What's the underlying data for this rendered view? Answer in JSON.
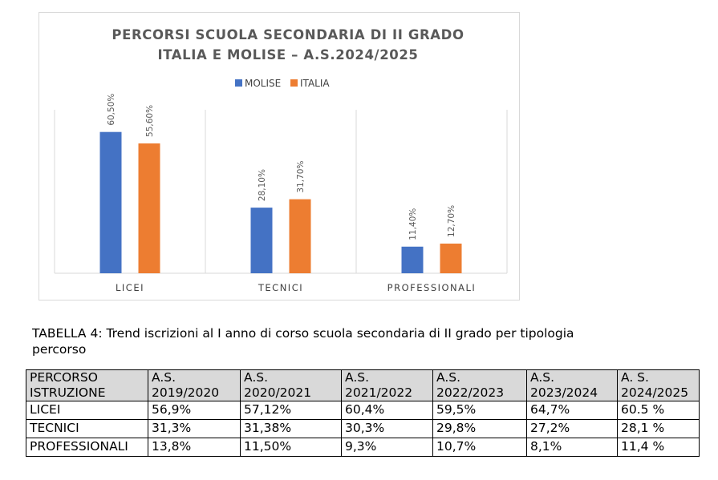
{
  "chart_data": {
    "type": "bar",
    "title_line1": "PERCORSI SCUOLA SECONDARIA DI II GRADO",
    "title_line2": "ITALIA E MOLISE – A.S.2024/2025",
    "categories": [
      "LICEI",
      "TECNICI",
      "PROFESSIONALI"
    ],
    "series": [
      {
        "name": "MOLISE",
        "values": [
          60.5,
          28.1,
          11.4
        ],
        "labels": [
          "60,50%",
          "28,10%",
          "11,40%"
        ],
        "color": "#4472C4"
      },
      {
        "name": "ITALIA",
        "values": [
          55.6,
          31.7,
          12.7
        ],
        "labels": [
          "55,60%",
          "31,70%",
          "12,70%"
        ],
        "color": "#ED7D31"
      }
    ],
    "ylim": [
      0,
      70
    ],
    "legend": "top",
    "grid": false
  },
  "caption": {
    "line1": "TABELLA 4: Trend iscrizioni al I anno di corso scuola secondaria di II grado per tipologia",
    "line2": "percorso"
  },
  "table": {
    "headers": [
      [
        "PERCORSO",
        "ISTRUZIONE"
      ],
      [
        "A.S.",
        "2019/2020"
      ],
      [
        "A.S.",
        "2020/2021"
      ],
      [
        "A.S.",
        "2021/2022"
      ],
      [
        "A.S.",
        "2022/2023"
      ],
      [
        "A.S.",
        "2023/2024"
      ],
      [
        "A. S.",
        "2024/2025"
      ]
    ],
    "rows": [
      [
        "LICEI",
        "56,9%",
        "57,12%",
        "60,4%",
        "59,5%",
        "64,7%",
        "60.5 %"
      ],
      [
        "TECNICI",
        "31,3%",
        "31,38%",
        "30,3%",
        "29,8%",
        "27,2%",
        "28,1 %"
      ],
      [
        "PROFESSIONALI",
        "13,8%",
        "11,50%",
        "9,3%",
        "10,7%",
        "8,1%",
        "11,4 %"
      ]
    ]
  }
}
